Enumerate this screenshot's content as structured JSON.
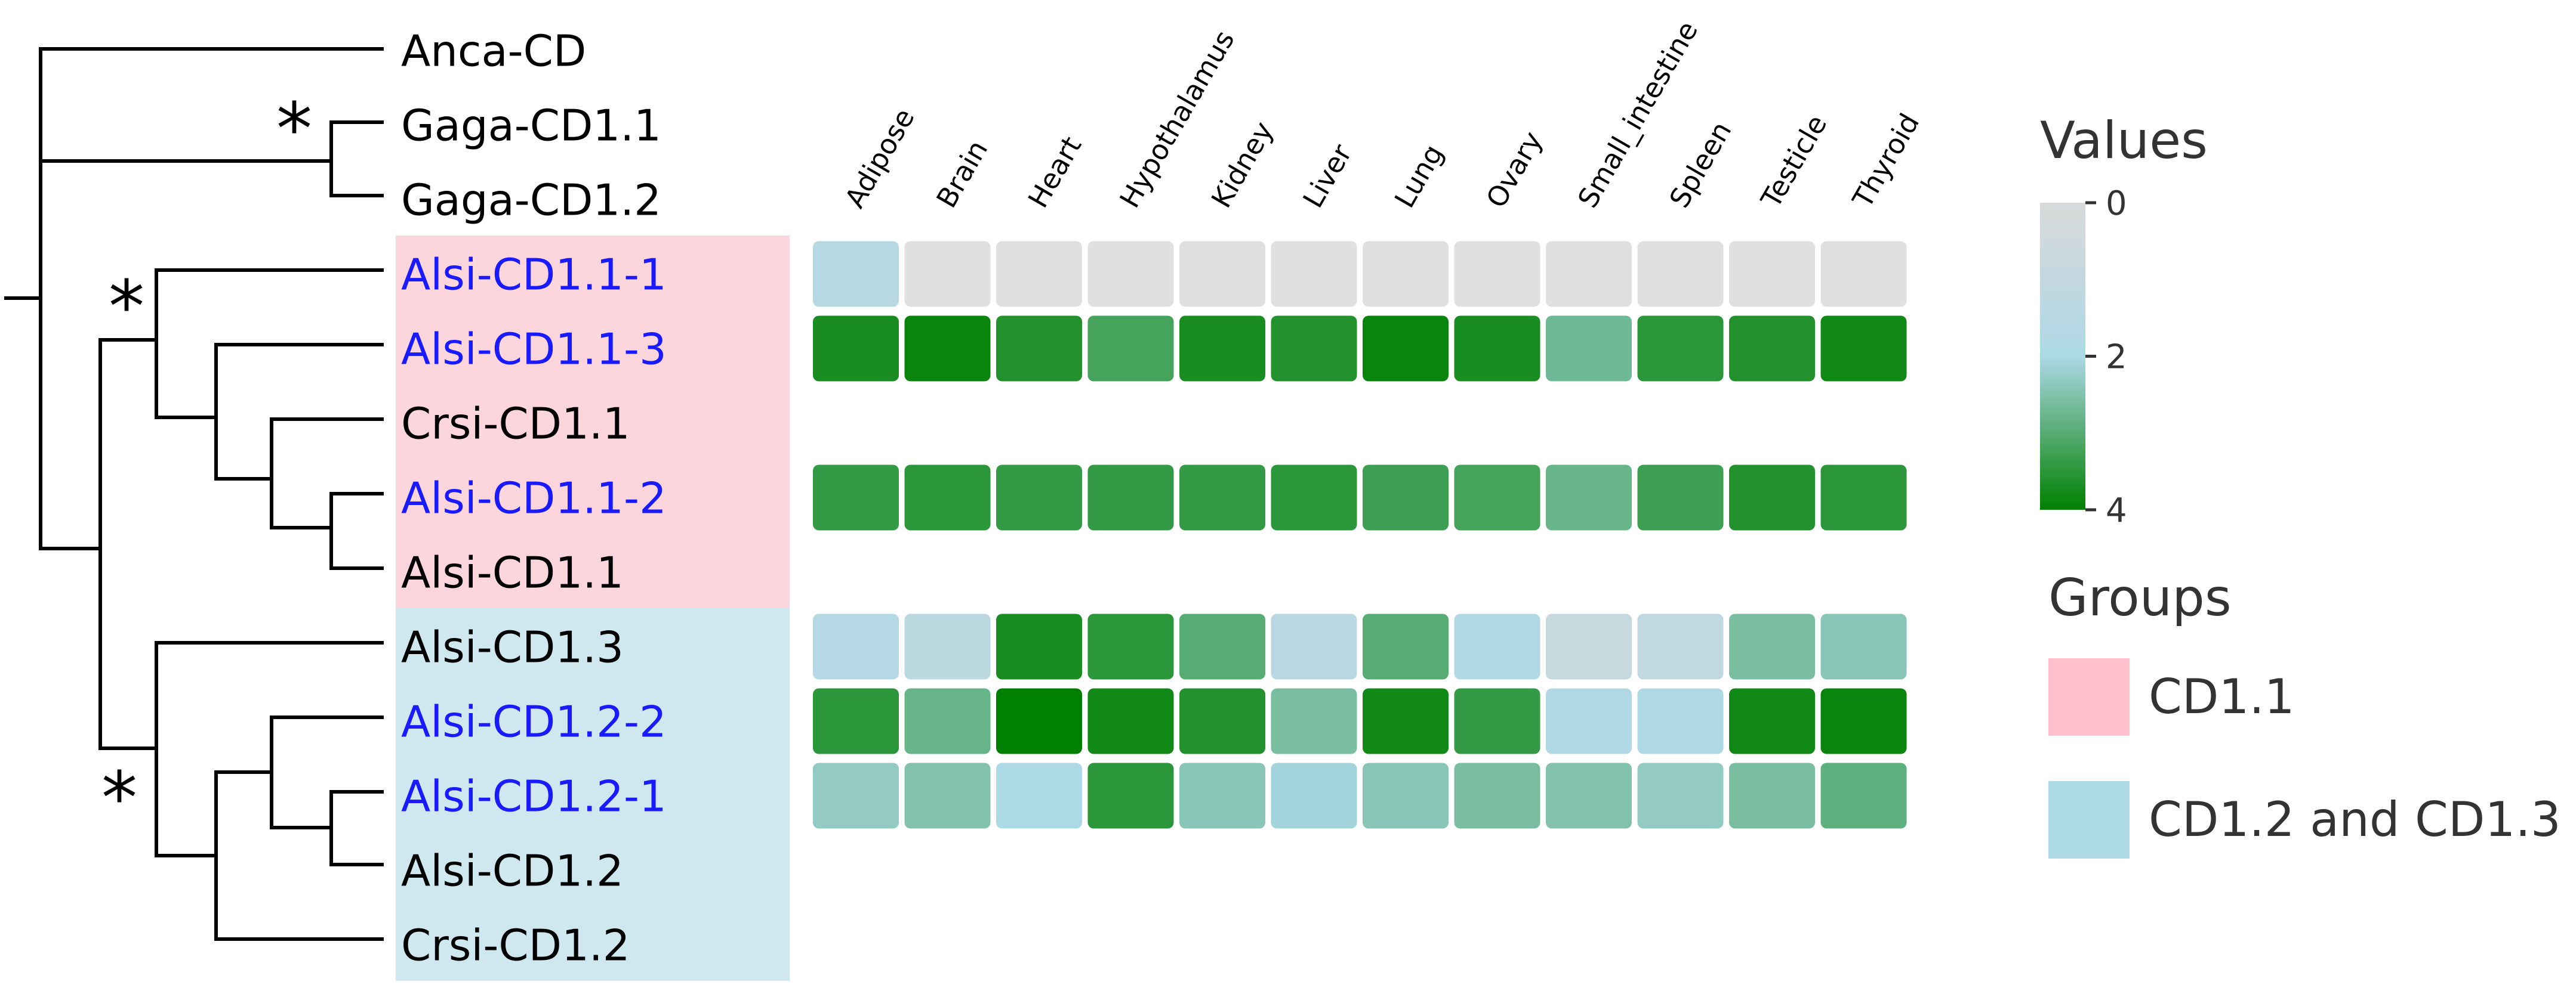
{
  "chart_data": {
    "type": "heatmap",
    "tissues": [
      "Adipose",
      "Brain",
      "Heart",
      "Hypothalamus",
      "Kidney",
      "Liver",
      "Lung",
      "Ovary",
      "Small_intestine",
      "Spleen",
      "Testicle",
      "Thyroid"
    ],
    "genes": [
      {
        "name": "Anca-CD",
        "highlight": false,
        "group": null,
        "values": null
      },
      {
        "name": "Gaga-CD1.1",
        "highlight": false,
        "group": null,
        "values": null
      },
      {
        "name": "Gaga-CD1.2",
        "highlight": false,
        "group": null,
        "values": null
      },
      {
        "name": "Alsi-CD1.1-1",
        "highlight": true,
        "group": "CD1.1",
        "values": [
          1.6,
          0,
          0,
          0,
          0,
          0,
          0,
          0,
          0,
          0,
          0,
          0
        ]
      },
      {
        "name": "Alsi-CD1.1-3",
        "highlight": true,
        "group": "CD1.1",
        "values": [
          3.7,
          3.9,
          3.6,
          3.2,
          3.7,
          3.6,
          3.9,
          3.7,
          2.7,
          3.5,
          3.6,
          3.8
        ]
      },
      {
        "name": "Crsi-CD1.1",
        "highlight": false,
        "group": "CD1.1",
        "values": null
      },
      {
        "name": "Alsi-CD1.1-2",
        "highlight": true,
        "group": "CD1.1",
        "values": [
          3.4,
          3.5,
          3.4,
          3.4,
          3.4,
          3.5,
          3.3,
          3.2,
          2.8,
          3.3,
          3.6,
          3.5
        ]
      },
      {
        "name": "Alsi-CD1.1",
        "highlight": false,
        "group": "CD1.1",
        "values": null
      },
      {
        "name": "Alsi-CD1.3",
        "highlight": false,
        "group": "CD1.2 and CD1.3",
        "values": [
          1.7,
          1.3,
          3.7,
          3.5,
          3.0,
          1.4,
          3.0,
          1.8,
          0.9,
          1.1,
          2.6,
          2.4
        ]
      },
      {
        "name": "Alsi-CD1.2-2",
        "highlight": true,
        "group": "CD1.2 and CD1.3",
        "values": [
          3.5,
          2.8,
          4.0,
          3.8,
          3.6,
          2.6,
          3.8,
          3.4,
          1.8,
          1.9,
          3.8,
          3.9
        ]
      },
      {
        "name": "Alsi-CD1.2-1",
        "highlight": true,
        "group": "CD1.2 and CD1.3",
        "values": [
          2.3,
          2.5,
          2.0,
          3.5,
          2.4,
          2.1,
          2.4,
          2.6,
          2.5,
          2.3,
          2.6,
          2.9
        ]
      },
      {
        "name": "Alsi-CD1.2",
        "highlight": false,
        "group": "CD1.2 and CD1.3",
        "values": null
      },
      {
        "name": "Crsi-CD1.2",
        "highlight": false,
        "group": "CD1.2 and CD1.3",
        "values": null
      }
    ],
    "significance_marker": "*",
    "values_legend": {
      "title": "Values",
      "ticks": [
        "0",
        "2",
        "4"
      ],
      "min": 0,
      "max": 4,
      "colors": [
        "#d9d9d9",
        "#add8e6",
        "#008000"
      ]
    },
    "groups_legend": {
      "title": "Groups",
      "items": [
        {
          "label": "CD1.1",
          "color": "#ffc0cb"
        },
        {
          "label": "CD1.2 and CD1.3",
          "color": "#add8e6"
        }
      ]
    },
    "colors": {
      "highlight_text": "#1a1aff",
      "normal_text": "#000000",
      "cd11_band": "#fdd5dd",
      "cd12_band": "#cfe7ef",
      "missing": "#e0e0e0"
    }
  }
}
